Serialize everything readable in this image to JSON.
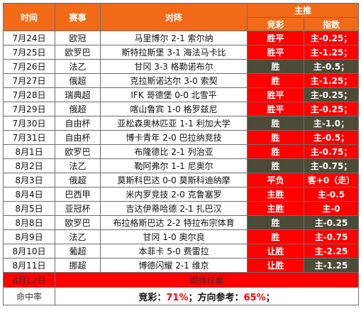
{
  "header": {
    "time": "时间",
    "league": "赛事",
    "match": "对阵",
    "main_pick": "主推",
    "jingcai": "竞彩",
    "index": "指数"
  },
  "colors": {
    "header_bg": "#f06a18",
    "red": "#ff0000",
    "olive": "#4c4b38"
  },
  "rows": [
    {
      "date": "7月24日",
      "league": "欧冠",
      "match": "马里博尔 2-1 索尔纳",
      "pick": "胜平",
      "pick_color": "red",
      "index": "主-0.25；",
      "index_color": "red"
    },
    {
      "date": "7月25日",
      "league": "欧罗巴",
      "match": "斯特拉斯堡 3-1 海法马卡比",
      "pick": "胜平",
      "pick_color": "red",
      "index": "主-1.25；",
      "index_color": "red"
    },
    {
      "date": "7月26日",
      "league": "法乙",
      "match": "甘冈 3-3 格勒诺布尔",
      "pick": "胜",
      "pick_color": "olive",
      "index": "主-0.5；",
      "index_color": "olive"
    },
    {
      "date": "7月27日",
      "league": "俄超",
      "match": "克拉斯诺达尔 3-0 索契",
      "pick": "胜",
      "pick_color": "red",
      "index": "主-1.25；",
      "index_color": "red"
    },
    {
      "date": "7月28日",
      "league": "瑞典超",
      "match": "IFK 哥德堡 0-0 北雪平",
      "pick": "胜平",
      "pick_color": "red",
      "index": "主-0.25；",
      "index_color": "olive"
    },
    {
      "date": "7月29日",
      "league": "俄超",
      "match": "喀山鲁宾 1-0 格罗兹尼",
      "pick": "胜平",
      "pick_color": "red",
      "index": "主-0.25；",
      "index_color": "red"
    },
    {
      "date": "7月30日",
      "league": "自由杯",
      "match": "亚松森奥林匹亚 1-1 利加大学",
      "pick": "胜",
      "pick_color": "olive",
      "index": "主-1.0；",
      "index_color": "olive"
    },
    {
      "date": "7月31日",
      "league": "自由杯",
      "match": "博卡青年 2-0 巴拉纳竞技",
      "pick": "胜",
      "pick_color": "red",
      "index": "主-0.5；",
      "index_color": "red"
    },
    {
      "date": "8月1日",
      "league": "欧罗巴",
      "match": "布隆德比 2-1 列治亚",
      "pick": "胜",
      "pick_color": "red",
      "index": "主-0.75；",
      "index_color": "red"
    },
    {
      "date": "8月2日",
      "league": "法乙",
      "match": "勒阿弗尔 1-1 尼奥尔",
      "pick": "胜",
      "pick_color": "olive",
      "index": "主-0.75；",
      "index_color": "olive"
    },
    {
      "date": "8月3日",
      "league": "俄超",
      "match": "莫斯科巴达 0-0 莫斯科迪纳摩",
      "pick": "平负",
      "pick_color": "red",
      "index": "客+0（走）",
      "index_color": "red"
    },
    {
      "date": "8月4日",
      "league": "巴西甲",
      "match": "米内罗竞技 2-0 克鲁塞罗",
      "pick": "主胜",
      "pick_color": "red",
      "index": "主-0.5",
      "index_color": "red"
    },
    {
      "date": "8月5日",
      "league": "亚冠杯",
      "match": "吉达伊蒂哈德 2-1 扎巴汉",
      "pick": "主胜",
      "pick_color": "red",
      "index": "主-0",
      "index_color": "red"
    },
    {
      "date": "8月8日",
      "league": "欧罗巴",
      "match": "布拉格斯巴达 2-2 特拉布宗体育",
      "pick": "胜",
      "pick_color": "olive",
      "index": "主-0.25",
      "index_color": "olive"
    },
    {
      "date": "8月9日",
      "league": "法乙",
      "match": "甘冈 1-0 奥尔良",
      "pick": "胜",
      "pick_color": "red",
      "index": "主-0.75",
      "index_color": "red"
    },
    {
      "date": "8月10日",
      "league": "葡超",
      "match": "本菲卡 5-0 费雷拉",
      "pick": "让胜",
      "pick_color": "red",
      "index": "主-2.25",
      "index_color": "red"
    },
    {
      "date": "8月11日",
      "league": "挪超",
      "match": "博德闪耀 2-1 维京",
      "pick": "让胜",
      "pick_color": "red",
      "index": "主-1.25",
      "index_color": "olive"
    }
  ],
  "footer": {
    "date": "8月12日",
    "waiting": "期待红单",
    "hit_rate_label": "命中率",
    "jingcai_label": "竞彩：",
    "jingcai_value": "71%",
    "separator": "；方向参考：",
    "direction_value": "65%",
    "end": "；"
  }
}
